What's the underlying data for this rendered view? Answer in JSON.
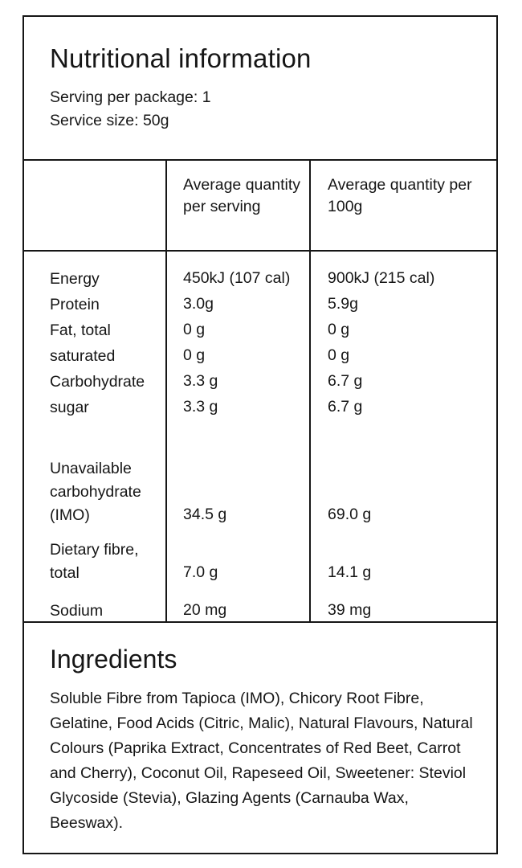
{
  "colors": {
    "text": "#161616",
    "border": "#161616",
    "background": "#ffffff"
  },
  "header": {
    "title": "Nutritional information",
    "serving_lines": [
      "Serving per package: 1",
      "Service size: 50g"
    ]
  },
  "table": {
    "columns": [
      "",
      "Average quantity per serving",
      "Average quantity per 100g"
    ],
    "rows": [
      {
        "label": "Energy",
        "serving": "450kJ (107 cal)",
        "per100": "900kJ (215 cal)"
      },
      {
        "label": "Protein",
        "serving": "3.0g",
        "per100": "5.9g"
      },
      {
        "label": "Fat, total",
        "serving": "0 g",
        "per100": "0 g"
      },
      {
        "label": "saturated",
        "serving": "0 g",
        "per100": "0 g"
      },
      {
        "label": "Carbohydrate",
        "serving": "3.3 g",
        "per100": "6.7 g"
      },
      {
        "label": "sugar",
        "serving": "3.3 g",
        "per100": "6.7 g"
      },
      {
        "label": "Unavailable carbohydrate (IMO)",
        "serving": "34.5 g",
        "per100": "69.0 g"
      },
      {
        "label": "Dietary fibre, total",
        "serving": "7.0 g",
        "per100": "14.1 g"
      },
      {
        "label": "Sodium",
        "serving": "20 mg",
        "per100": "39 mg"
      }
    ]
  },
  "ingredients": {
    "title": "Ingredients",
    "text": "Soluble Fibre from Tapioca (IMO), Chicory Root Fibre, Gelatine, Food Acids (Citric, Malic), Natural Flavours, Natural Colours (Paprika Extract, Concentrates of Red Beet, Carrot and Cherry), Coconut Oil, Rapeseed Oil, Sweetener: Steviol Glycoside (Stevia), Glazing Agents (Carnauba Wax, Beeswax)."
  }
}
